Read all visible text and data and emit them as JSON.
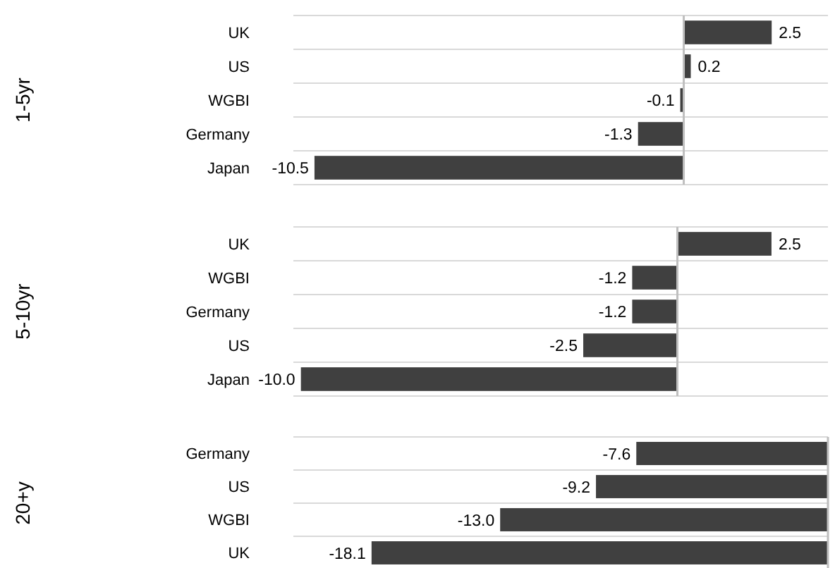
{
  "chart_data": [
    {
      "type": "bar",
      "orientation": "horizontal",
      "ylabel": "1-5yr",
      "categories": [
        "UK",
        "US",
        "WGBI",
        "Germany",
        "Japan"
      ],
      "values": [
        2.5,
        0.2,
        -0.1,
        -1.3,
        -10.5
      ],
      "value_labels": [
        "2.5",
        "0.2",
        "-0.1",
        "-1.3",
        "-10.5"
      ],
      "color": "#404040",
      "xlim": [
        -11.1,
        4.1
      ],
      "grid": "y",
      "tick_labels": "y"
    },
    {
      "type": "bar",
      "orientation": "horizontal",
      "ylabel": "5-10yr",
      "categories": [
        "UK",
        "WGBI",
        "Germany",
        "US",
        "Japan"
      ],
      "values": [
        2.5,
        -1.2,
        -1.2,
        -2.5,
        -10.0
      ],
      "value_labels": [
        "2.5",
        "-1.2",
        "-1.2",
        "-2.5",
        "-10.0"
      ],
      "color": "#404040",
      "xlim": [
        -10.2,
        4.0
      ],
      "grid": "y",
      "tick_labels": "y"
    },
    {
      "type": "bar",
      "orientation": "horizontal",
      "ylabel": "20+y",
      "categories": [
        "Germany",
        "US",
        "WGBI",
        "UK"
      ],
      "values": [
        -7.6,
        -9.2,
        -13.0,
        -18.1
      ],
      "value_labels": [
        "-7.6",
        "-9.2",
        "-13.0",
        "-18.1"
      ],
      "color": "#404040",
      "xlim": [
        -21.2,
        0
      ],
      "grid": "y",
      "tick_labels": "y"
    }
  ]
}
